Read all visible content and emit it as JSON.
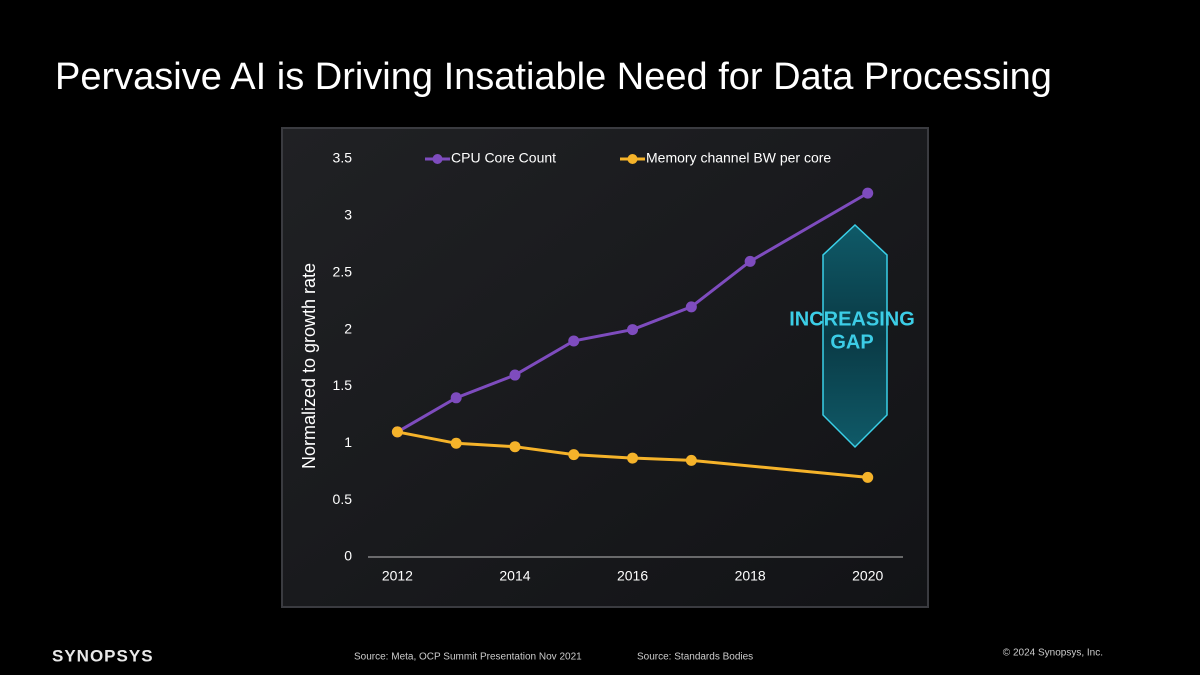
{
  "title": "Pervasive AI is Driving Insatiable Need for Data Processing",
  "chart_data": {
    "type": "line",
    "y_label": "Normalized to growth rate",
    "annotation": [
      "INCREASING",
      "GAP"
    ],
    "xlim": [
      2011.5,
      2020.6
    ],
    "xticks": [
      2012,
      2014,
      2016,
      2018,
      2020
    ],
    "ylim": [
      0,
      3.5
    ],
    "yticks": [
      0,
      0.5,
      1,
      1.5,
      2,
      2.5,
      3,
      3.5
    ],
    "legend": "top",
    "series": [
      {
        "name": "CPU Core Count",
        "color": "#7e4cbe",
        "x": [
          2012,
          2013,
          2014,
          2015,
          2016,
          2017,
          2018,
          2020
        ],
        "values": [
          1.1,
          1.4,
          1.6,
          1.9,
          2.0,
          2.2,
          2.6,
          3.2
        ]
      },
      {
        "name": "Memory channel BW per core",
        "color": "#f5b32a",
        "x": [
          2012,
          2013,
          2014,
          2015,
          2016,
          2017,
          2020
        ],
        "values": [
          1.1,
          1.0,
          0.97,
          0.9,
          0.87,
          0.85,
          0.7
        ]
      }
    ]
  },
  "footer": {
    "logo": "SYNOPSYS",
    "source_1": "Source: Meta, OCP Summit Presentation Nov 2021",
    "source_2": "Source: Standards Bodies",
    "copyright": "© 2024 Synopsys, Inc."
  }
}
